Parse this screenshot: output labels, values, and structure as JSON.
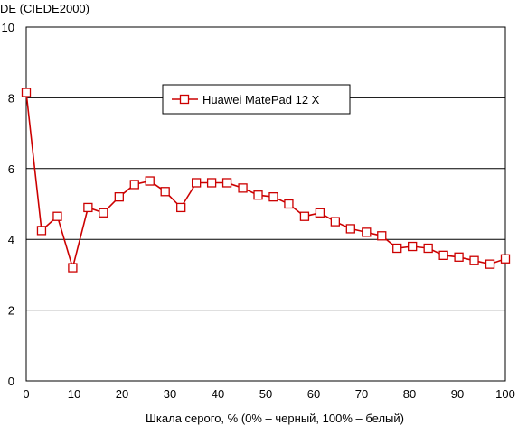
{
  "chart_data": {
    "type": "line",
    "ylabel": "DE (CIEDE2000)",
    "xlabel": "Шкала серого, % (0% – черный, 100% – белый)",
    "xlim": [
      0,
      100
    ],
    "ylim": [
      0,
      10
    ],
    "xticks": [
      "0",
      "10",
      "20",
      "30",
      "40",
      "50",
      "60",
      "70",
      "80",
      "90",
      "100"
    ],
    "yticks": [
      "0",
      "2",
      "4",
      "6",
      "8",
      "10"
    ],
    "grid": "horizontal",
    "legend_position": "top-center",
    "series": [
      {
        "name": "Huawei MatePad 12 X",
        "color": "#cc0000",
        "marker": "square-open",
        "x": [
          0,
          3.2,
          6.5,
          9.7,
          12.9,
          16.1,
          19.4,
          22.6,
          25.8,
          29.0,
          32.3,
          35.5,
          38.7,
          41.9,
          45.2,
          48.4,
          51.6,
          54.8,
          58.1,
          61.3,
          64.5,
          67.7,
          71.0,
          74.2,
          77.4,
          80.6,
          83.9,
          87.1,
          90.3,
          93.5,
          96.8,
          100
        ],
        "y": [
          8.15,
          4.25,
          4.65,
          3.2,
          4.9,
          4.75,
          5.2,
          5.55,
          5.65,
          5.35,
          4.9,
          5.6,
          5.6,
          5.6,
          5.45,
          5.25,
          5.2,
          5.0,
          4.65,
          4.75,
          4.5,
          4.3,
          4.2,
          4.1,
          3.75,
          3.8,
          3.75,
          3.55,
          3.5,
          3.4,
          3.3,
          3.45
        ]
      }
    ]
  }
}
